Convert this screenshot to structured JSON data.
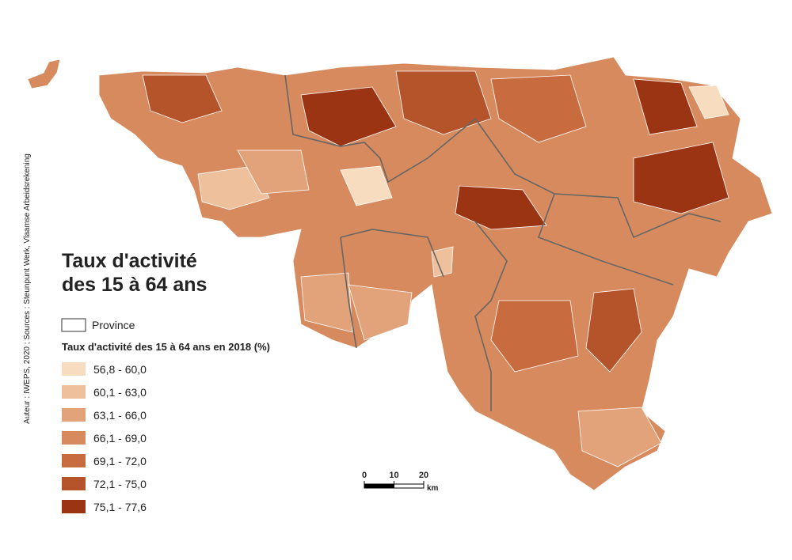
{
  "title": [
    "Taux d'activité",
    "des 15 à 64 ans"
  ],
  "credit": "Auteur : IWEPS, 2020 ; Sources : Steunpunt Werk, Vlaamse Arbeidsrekening",
  "legend": {
    "province": "Province",
    "title": "Taux d'activité des 15 à 64 ans en 2018 (%)",
    "classes": [
      {
        "label": "56,8 - 60,0",
        "color": "#f7dcc0"
      },
      {
        "label": "60,1 - 63,0",
        "color": "#efc09c"
      },
      {
        "label": "63,1 - 66,0",
        "color": "#e2a37a"
      },
      {
        "label": "66,1 - 69,0",
        "color": "#d68a5d"
      },
      {
        "label": "69,1 - 72,0",
        "color": "#c86c3f"
      },
      {
        "label": "72,1 - 75,0",
        "color": "#b5532a"
      },
      {
        "label": "75,1 - 77,6",
        "color": "#9a3413"
      }
    ]
  },
  "scale": {
    "ticks": [
      0,
      10,
      20
    ],
    "unit": "km"
  }
}
